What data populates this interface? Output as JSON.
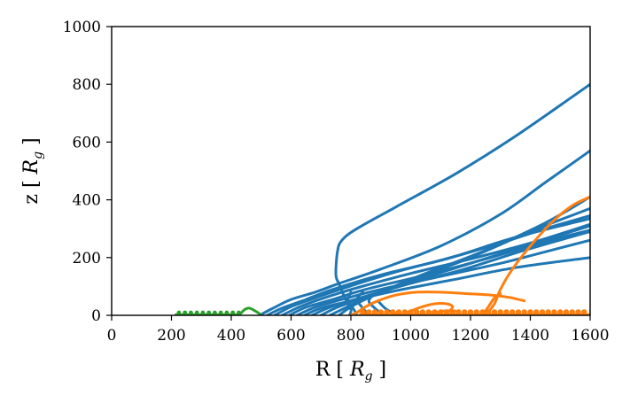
{
  "chart_data": {
    "type": "line",
    "title": "",
    "xlabel": {
      "prefix": "R [ ",
      "symbol": "R",
      "subscript": "g",
      "suffix": " ]"
    },
    "ylabel": {
      "prefix": "z [ ",
      "symbol": "R",
      "subscript": "g",
      "suffix": " ]"
    },
    "xlim": [
      0,
      1600
    ],
    "ylim": [
      0,
      1000
    ],
    "xticks": [
      0,
      200,
      400,
      600,
      800,
      1000,
      1200,
      1400,
      1600
    ],
    "yticks": [
      0,
      200,
      400,
      600,
      800,
      1000
    ],
    "grid": false,
    "legend": "none",
    "colors": {
      "blue": "#1f77b4",
      "orange": "#ff7f0e",
      "green": "#2ca02c"
    },
    "series": [
      {
        "name": "blue-1",
        "color": "blue",
        "points": [
          [
            495,
            0
          ],
          [
            540,
            25
          ],
          [
            600,
            55
          ],
          [
            680,
            80
          ],
          [
            760,
            110
          ],
          [
            900,
            160
          ],
          [
            1100,
            240
          ],
          [
            1300,
            350
          ],
          [
            1450,
            460
          ],
          [
            1600,
            570
          ]
        ]
      },
      {
        "name": "blue-2",
        "color": "blue",
        "points": [
          [
            520,
            0
          ],
          [
            570,
            25
          ],
          [
            650,
            55
          ],
          [
            740,
            90
          ],
          [
            900,
            140
          ],
          [
            1100,
            190
          ],
          [
            1300,
            250
          ],
          [
            1450,
            300
          ],
          [
            1600,
            345
          ]
        ]
      },
      {
        "name": "blue-3",
        "color": "blue",
        "points": [
          [
            545,
            0
          ],
          [
            600,
            30
          ],
          [
            680,
            60
          ],
          [
            780,
            95
          ],
          [
            950,
            150
          ],
          [
            1150,
            205
          ],
          [
            1350,
            270
          ],
          [
            1600,
            335
          ]
        ]
      },
      {
        "name": "blue-4",
        "color": "blue",
        "points": [
          [
            570,
            0
          ],
          [
            630,
            30
          ],
          [
            710,
            60
          ],
          [
            820,
            95
          ],
          [
            1000,
            145
          ],
          [
            1200,
            195
          ],
          [
            1400,
            250
          ],
          [
            1600,
            315
          ]
        ]
      },
      {
        "name": "blue-5",
        "color": "blue",
        "points": [
          [
            595,
            0
          ],
          [
            650,
            28
          ],
          [
            740,
            55
          ],
          [
            850,
            90
          ],
          [
            1050,
            140
          ],
          [
            1250,
            195
          ],
          [
            1450,
            255
          ],
          [
            1600,
            295
          ]
        ]
      },
      {
        "name": "blue-6",
        "color": "blue",
        "points": [
          [
            620,
            0
          ],
          [
            680,
            28
          ],
          [
            770,
            55
          ],
          [
            900,
            90
          ],
          [
            1100,
            135
          ],
          [
            1300,
            180
          ],
          [
            1450,
            220
          ],
          [
            1600,
            260
          ]
        ]
      },
      {
        "name": "blue-7",
        "color": "blue",
        "points": [
          [
            645,
            0
          ],
          [
            700,
            25
          ],
          [
            800,
            50
          ],
          [
            950,
            85
          ],
          [
            1150,
            125
          ],
          [
            1350,
            165
          ],
          [
            1600,
            200
          ]
        ]
      },
      {
        "name": "blue-8",
        "color": "blue",
        "points": [
          [
            670,
            0
          ],
          [
            730,
            28
          ],
          [
            830,
            60
          ],
          [
            980,
            105
          ],
          [
            1180,
            160
          ],
          [
            1380,
            225
          ],
          [
            1600,
            290
          ]
        ]
      },
      {
        "name": "blue-9",
        "color": "blue",
        "points": [
          [
            700,
            0
          ],
          [
            760,
            30
          ],
          [
            860,
            65
          ],
          [
            1000,
            115
          ],
          [
            1200,
            180
          ],
          [
            1400,
            245
          ],
          [
            1600,
            310
          ]
        ]
      },
      {
        "name": "blue-10",
        "color": "blue",
        "points": [
          [
            730,
            0
          ],
          [
            790,
            30
          ],
          [
            880,
            70
          ],
          [
            1000,
            120
          ],
          [
            1200,
            200
          ],
          [
            1400,
            290
          ],
          [
            1600,
            370
          ]
        ]
      },
      {
        "name": "blue-11",
        "color": "blue",
        "points": [
          [
            760,
            0
          ],
          [
            810,
            35
          ],
          [
            900,
            80
          ],
          [
            1050,
            145
          ],
          [
            1250,
            225
          ],
          [
            1450,
            320
          ],
          [
            1600,
            410
          ]
        ]
      },
      {
        "name": "blue-12",
        "color": "blue",
        "points": [
          [
            795,
            0
          ],
          [
            800,
            20
          ],
          [
            780,
            60
          ],
          [
            760,
            110
          ],
          [
            750,
            140
          ],
          [
            755,
            220
          ],
          [
            770,
            260
          ],
          [
            820,
            300
          ],
          [
            950,
            375
          ],
          [
            1150,
            490
          ],
          [
            1350,
            620
          ],
          [
            1600,
            800
          ]
        ]
      },
      {
        "name": "blue-13",
        "color": "blue",
        "points": [
          [
            820,
            0
          ],
          [
            810,
            20
          ],
          [
            790,
            50
          ],
          [
            800,
            80
          ]
        ]
      },
      {
        "name": "blue-14",
        "color": "blue",
        "points": [
          [
            860,
            0
          ],
          [
            840,
            25
          ],
          [
            820,
            55
          ],
          [
            840,
            80
          ]
        ]
      },
      {
        "name": "blue-15",
        "color": "blue",
        "points": [
          [
            910,
            0
          ],
          [
            880,
            25
          ],
          [
            860,
            50
          ],
          [
            880,
            75
          ]
        ]
      },
      {
        "name": "blue-16",
        "color": "blue",
        "points": [
          [
            960,
            0
          ],
          [
            920,
            20
          ],
          [
            890,
            50
          ]
        ]
      },
      {
        "name": "orange-1",
        "color": "orange",
        "points": [
          [
            800,
            0
          ],
          [
            820,
            10
          ],
          [
            850,
            30
          ],
          [
            890,
            50
          ],
          [
            950,
            70
          ],
          [
            1020,
            80
          ],
          [
            1100,
            80
          ],
          [
            1190,
            75
          ],
          [
            1270,
            70
          ],
          [
            1330,
            62
          ],
          [
            1380,
            50
          ]
        ]
      },
      {
        "name": "orange-2",
        "color": "orange",
        "points": [
          [
            960,
            0
          ],
          [
            1000,
            15
          ],
          [
            1040,
            30
          ],
          [
            1080,
            40
          ],
          [
            1120,
            40
          ],
          [
            1140,
            30
          ],
          [
            1130,
            15
          ]
        ]
      },
      {
        "name": "orange-3",
        "color": "orange",
        "points": [
          [
            1050,
            0
          ],
          [
            1080,
            8
          ],
          [
            1110,
            15
          ],
          [
            1150,
            15
          ]
        ]
      },
      {
        "name": "orange-4",
        "color": "orange",
        "points": [
          [
            1250,
            0
          ],
          [
            1280,
            40
          ],
          [
            1300,
            90
          ],
          [
            1340,
            160
          ],
          [
            1400,
            240
          ],
          [
            1470,
            320
          ],
          [
            1540,
            380
          ],
          [
            1600,
            410
          ]
        ]
      },
      {
        "name": "orange-5",
        "color": "orange",
        "points": [
          [
            1240,
            0
          ],
          [
            1260,
            30
          ],
          [
            1280,
            60
          ],
          [
            1300,
            75
          ]
        ]
      },
      {
        "name": "orange-dotted",
        "color": "orange",
        "pattern": "loops",
        "range": [
          830,
          1600
        ],
        "amplitude": 14,
        "period": 20
      },
      {
        "name": "green-loops",
        "color": "green",
        "pattern": "loops",
        "range": [
          215,
          430
        ],
        "amplitude": 10,
        "period": 20
      },
      {
        "name": "green-tail",
        "color": "green",
        "points": [
          [
            430,
            5
          ],
          [
            445,
            20
          ],
          [
            460,
            25
          ],
          [
            480,
            15
          ],
          [
            495,
            5
          ]
        ]
      }
    ]
  }
}
